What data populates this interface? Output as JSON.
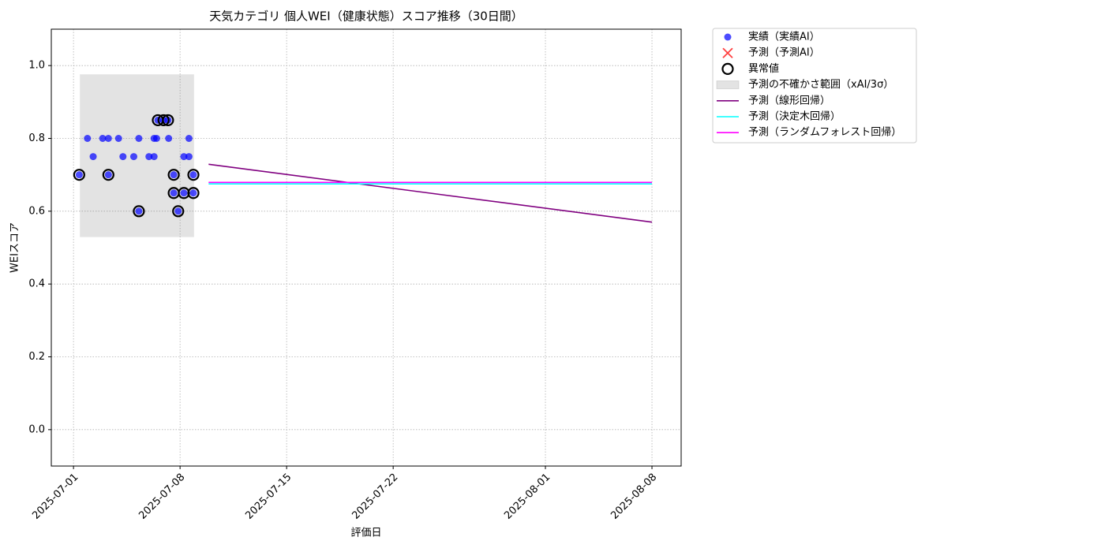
{
  "chart_data": {
    "type": "scatter",
    "title": "天気カテゴリ 個人WEI（健康状態）スコア推移（30日間）",
    "xlabel": "評価日",
    "ylabel": "WEIスコア",
    "xlim": [
      "2025-06-29T13:00",
      "2025-08-09T22:00"
    ],
    "ylim": [
      -0.1,
      1.1
    ],
    "xticks": [
      "2025-07-01",
      "2025-07-08",
      "2025-07-15",
      "2025-07-22",
      "2025-08-01",
      "2025-08-08"
    ],
    "yticks": [
      {
        "value": 0,
        "label": "0.0"
      },
      0.2,
      0.4,
      0.6,
      0.8,
      {
        "value": 1,
        "label": "1.0"
      }
    ],
    "grid": true,
    "legend": "outside-upper-right",
    "series": [
      {
        "name": "実績（実績AI）",
        "kind": "scatter",
        "color": "#0000ff",
        "x": [
          "2025-07-01T09:00",
          "2025-07-01T22:00",
          "2025-07-02T07:00",
          "2025-07-02T22:00",
          "2025-07-03T07:00",
          "2025-07-03T07:00",
          "2025-07-03T23:00",
          "2025-07-04T06:00",
          "2025-07-04T23:00",
          "2025-07-05T07:00",
          "2025-07-05T07:00",
          "2025-07-05T23:00",
          "2025-07-06T07:00",
          "2025-07-06T07:00",
          "2025-07-06T11:00",
          "2025-07-06T13:00",
          "2025-07-06T22:00",
          "2025-07-07T05:00",
          "2025-07-07T06:00",
          "2025-07-07T14:00",
          "2025-07-07T14:00",
          "2025-07-07T21:00",
          "2025-07-08T06:00",
          "2025-07-08T06:00",
          "2025-07-08T14:00",
          "2025-07-08T14:00",
          "2025-07-08T21:00",
          "2025-07-08T21:00"
        ],
        "values": [
          0.7,
          0.8,
          0.75,
          0.8,
          0.7,
          0.8,
          0.8,
          0.75,
          0.75,
          0.8,
          0.6,
          0.75,
          0.8,
          0.75,
          0.8,
          0.85,
          0.85,
          0.85,
          0.8,
          0.7,
          0.65,
          0.6,
          0.65,
          0.75,
          0.8,
          0.75,
          0.7,
          0.65
        ]
      },
      {
        "name": "予測（予測AI）",
        "kind": "cross",
        "color": "#ff0000",
        "x": [],
        "values": []
      },
      {
        "name": "異常値",
        "kind": "ring",
        "color": "#000000",
        "x": [
          "2025-07-01T09:00",
          "2025-07-03T07:00",
          "2025-07-05T07:00",
          "2025-07-06T13:00",
          "2025-07-06T22:00",
          "2025-07-07T05:00",
          "2025-07-07T14:00",
          "2025-07-07T14:00",
          "2025-07-07T21:00",
          "2025-07-08T06:00",
          "2025-07-08T21:00",
          "2025-07-08T21:00"
        ],
        "values": [
          0.7,
          0.7,
          0.6,
          0.85,
          0.85,
          0.85,
          0.7,
          0.65,
          0.6,
          0.65,
          0.7,
          0.65
        ]
      },
      {
        "name": "予測の不確かさ範囲（xAI/3σ）",
        "kind": "band",
        "color": "#808080",
        "x": [
          "2025-07-01T10:00",
          "2025-07-08T22:00"
        ],
        "lower": [
          0.529,
          0.529
        ],
        "upper": [
          0.976,
          0.976
        ]
      },
      {
        "name": "予測（線形回帰）",
        "kind": "line",
        "color": "#800080",
        "x": [
          "2025-07-09T21:00",
          "2025-08-08T00:00"
        ],
        "values": [
          0.729,
          0.57
        ]
      },
      {
        "name": "予測（決定木回帰）",
        "kind": "line",
        "color": "#00ffff",
        "x": [
          "2025-07-09T21:00",
          "2025-08-08T00:00"
        ],
        "values": [
          0.675,
          0.675
        ]
      },
      {
        "name": "予測（ランダムフォレスト回帰）",
        "kind": "line",
        "color": "#ff00ff",
        "x": [
          "2025-07-09T21:00",
          "2025-08-08T00:00"
        ],
        "values": [
          0.679,
          0.679
        ]
      }
    ]
  }
}
